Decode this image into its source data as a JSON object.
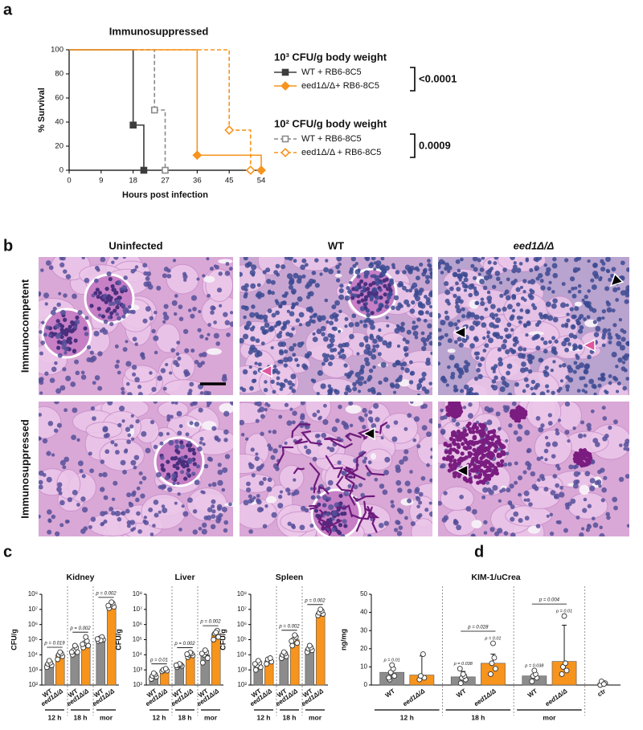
{
  "panel_labels": [
    "a",
    "b",
    "c",
    "d"
  ],
  "chart_data": [
    {
      "type": "survival",
      "title": "Immunosuppressed",
      "xlabel": "Hours post infection",
      "ylabel": "% Survival",
      "xlim": [
        0,
        54
      ],
      "xticks": [
        0,
        9,
        18,
        27,
        36,
        45,
        54
      ],
      "ylim": [
        0,
        100
      ],
      "yticks": [
        0,
        20,
        40,
        60,
        80,
        100
      ],
      "legend_groups": [
        {
          "title": "10³ CFU/g body weight",
          "p_value": "<0.0001"
        },
        {
          "title": "10² CFU/g body weight",
          "p_value": "0.0009"
        }
      ],
      "series": [
        {
          "name": "WT + RB6-8C5",
          "color": "#3d3d3d",
          "style": "solid",
          "marker": "square",
          "filled": true,
          "x": [
            0,
            18,
            21
          ],
          "values": [
            100,
            37.5,
            0
          ]
        },
        {
          "name": "eed1Δ/Δ+ RB6-8C5",
          "color": "#f7941d",
          "style": "solid",
          "marker": "diamond",
          "filled": true,
          "x": [
            0,
            36,
            54
          ],
          "values": [
            100,
            12.5,
            0
          ]
        },
        {
          "name": "WT + RB6-8C5",
          "color": "#8a8a8a",
          "style": "dashed",
          "marker": "square",
          "filled": false,
          "x": [
            0,
            24,
            27
          ],
          "values": [
            100,
            50,
            0
          ]
        },
        {
          "name": "eed1Δ/Δ + RB6-8C5",
          "color": "#f7941d",
          "style": "dashed",
          "marker": "diamond",
          "filled": false,
          "x": [
            0,
            45,
            51
          ],
          "values": [
            100,
            33.3,
            0
          ]
        }
      ]
    },
    {
      "type": "bar",
      "title": "Kidney",
      "ylabel": "CFU/g",
      "log_scale": true,
      "ylim": [
        100,
        100000000
      ],
      "yticks": [
        {
          "value": 100,
          "label": "10²"
        },
        {
          "value": 1000,
          "label": "10³"
        },
        {
          "value": 10000,
          "label": "10⁴"
        },
        {
          "value": 100000,
          "label": "10⁵"
        },
        {
          "value": 1000000,
          "label": "10⁶"
        },
        {
          "value": 10000000,
          "label": "10⁷"
        },
        {
          "value": 100000000,
          "label": "10⁸"
        }
      ],
      "categories": [
        "12 h",
        "18 h",
        "mor"
      ],
      "series": [
        {
          "name": "WT",
          "color": "#8c8c8c",
          "values": [
            2500,
            20000,
            100000
          ],
          "points": [
            [
              1500,
              2000,
              2500,
              3000,
              4000
            ],
            [
              10000,
              15000,
              20000,
              30000,
              40000,
              15000
            ],
            [
              80000,
              100000,
              120000,
              150000,
              90000,
              110000
            ]
          ]
        },
        {
          "name": "eed1Δ/Δ",
          "color": "#f7941d",
          "values": [
            10000,
            50000,
            20000000
          ],
          "points": [
            [
              5000,
              8000,
              10000,
              12000,
              15000
            ],
            [
              30000,
              40000,
              60000,
              80000,
              150000,
              50000
            ],
            [
              12000000,
              15000000,
              20000000,
              25000000,
              30000000,
              18000000
            ]
          ]
        }
      ],
      "p_values": [
        "p = 0.019",
        "p = 0.002",
        "p = 0.002"
      ]
    },
    {
      "type": "bar",
      "title": "Liver",
      "ylabel": "CFU/g",
      "log_scale": true,
      "ylim": [
        100,
        100000000
      ],
      "yticks": [
        {
          "value": 100,
          "label": "10²"
        },
        {
          "value": 1000,
          "label": "10³"
        },
        {
          "value": 10000,
          "label": "10⁴"
        },
        {
          "value": 100000,
          "label": "10⁵"
        },
        {
          "value": 1000000,
          "label": "10⁶"
        },
        {
          "value": 10000000,
          "label": "10⁷"
        },
        {
          "value": 100000000,
          "label": "10⁸"
        }
      ],
      "categories": [
        "12 h",
        "18 h",
        "mor"
      ],
      "series": [
        {
          "name": "WT",
          "color": "#8c8c8c",
          "values": [
            400,
            2000,
            10000
          ],
          "points": [
            [
              250,
              350,
              400,
              500,
              600
            ],
            [
              1500,
              1800,
              2000,
              2200,
              2500,
              2000
            ],
            [
              3000,
              6000,
              10000,
              15000,
              20000,
              12000
            ]
          ]
        },
        {
          "name": "eed1Δ/Δ",
          "color": "#f7941d",
          "values": [
            1000,
            10000,
            250000
          ],
          "points": [
            [
              800,
              900,
              1000,
              1200
            ],
            [
              7000,
              9000,
              10000,
              12000,
              14000,
              11000
            ],
            [
              100000,
              150000,
              250000,
              400000,
              300000
            ]
          ]
        }
      ],
      "p_values": [
        "p = 0.01",
        "p = 0.002",
        "p = 0.002"
      ]
    },
    {
      "type": "bar",
      "title": "Spleen",
      "ylabel": "CFU/g",
      "log_scale": true,
      "ylim": [
        100,
        100000000
      ],
      "yticks": [
        {
          "value": 100,
          "label": "10²"
        },
        {
          "value": 1000,
          "label": "10³"
        },
        {
          "value": 10000,
          "label": "10⁴"
        },
        {
          "value": 100000,
          "label": "10⁵"
        },
        {
          "value": 1000000,
          "label": "10⁶"
        },
        {
          "value": 10000000,
          "label": "10⁷"
        },
        {
          "value": 100000000,
          "label": "10⁸"
        }
      ],
      "categories": [
        "12 h",
        "18 h",
        "mor"
      ],
      "series": [
        {
          "name": "WT",
          "color": "#8c8c8c",
          "values": [
            2000,
            10000,
            25000
          ],
          "points": [
            [
              1000,
              1500,
              2000,
              3000,
              4000,
              2500
            ],
            [
              6000,
              8000,
              10000,
              12000,
              15000
            ],
            [
              15000,
              20000,
              25000,
              30000,
              40000
            ]
          ]
        },
        {
          "name": "eed1Δ/Δ",
          "color": "#f7941d",
          "values": [
            4000,
            100000,
            6000000
          ],
          "points": [
            [
              2500,
              3500,
              5000,
              6000
            ],
            [
              40000,
              60000,
              100000,
              150000,
              200000,
              80000
            ],
            [
              4000000,
              5000000,
              6000000,
              8000000,
              10000000
            ]
          ]
        }
      ],
      "p_values": [
        null,
        "p = 0.002",
        "p = 0.002"
      ]
    },
    {
      "type": "bar",
      "title": "KIM-1/uCrea",
      "ylabel": "ng/mg",
      "log_scale": false,
      "ylim": [
        0,
        50
      ],
      "yticks": [
        0,
        10,
        20,
        30,
        40,
        50
      ],
      "categories": [
        "12 h",
        "18 h",
        "mor"
      ],
      "series": [
        {
          "name": "WT",
          "color": "#8c8c8c",
          "values": [
            7,
            4.5,
            5
          ],
          "errors": [
            4,
            3,
            3
          ],
          "points": [
            [
              3,
              5,
              7,
              9,
              11,
              4
            ],
            [
              1,
              3,
              4,
              5,
              6,
              9
            ],
            [
              2,
              4,
              5,
              6,
              8
            ]
          ],
          "p_values_vs_control": [
            "p = 0.01",
            "p = 0.038",
            "p = 0.038"
          ]
        },
        {
          "name": "eed1Δ/Δ",
          "color": "#f7941d",
          "values": [
            5.5,
            12,
            13
          ],
          "errors": [
            10.5,
            5,
            20
          ],
          "points": [
            [
              3,
              4,
              5,
              17
            ],
            [
              6,
              9,
              12,
              15,
              23
            ],
            [
              6,
              8,
              10,
              12,
              38
            ]
          ],
          "p_values_vs_control": [
            null,
            "p = 0.01",
            "p = 0.01"
          ]
        }
      ],
      "control": {
        "name": "ctr",
        "color": "#ffffff",
        "value": 1,
        "error": 1,
        "points": [
          0,
          1,
          2,
          0.5
        ]
      },
      "p_values": [
        null,
        "p = 0.028",
        "p = 0.004"
      ]
    }
  ],
  "histology": {
    "columns": [
      "Uninfected",
      "WT",
      "eed1Δ/Δ"
    ],
    "rows": [
      "Immunocompetent",
      "Immunosuppressed"
    ]
  }
}
